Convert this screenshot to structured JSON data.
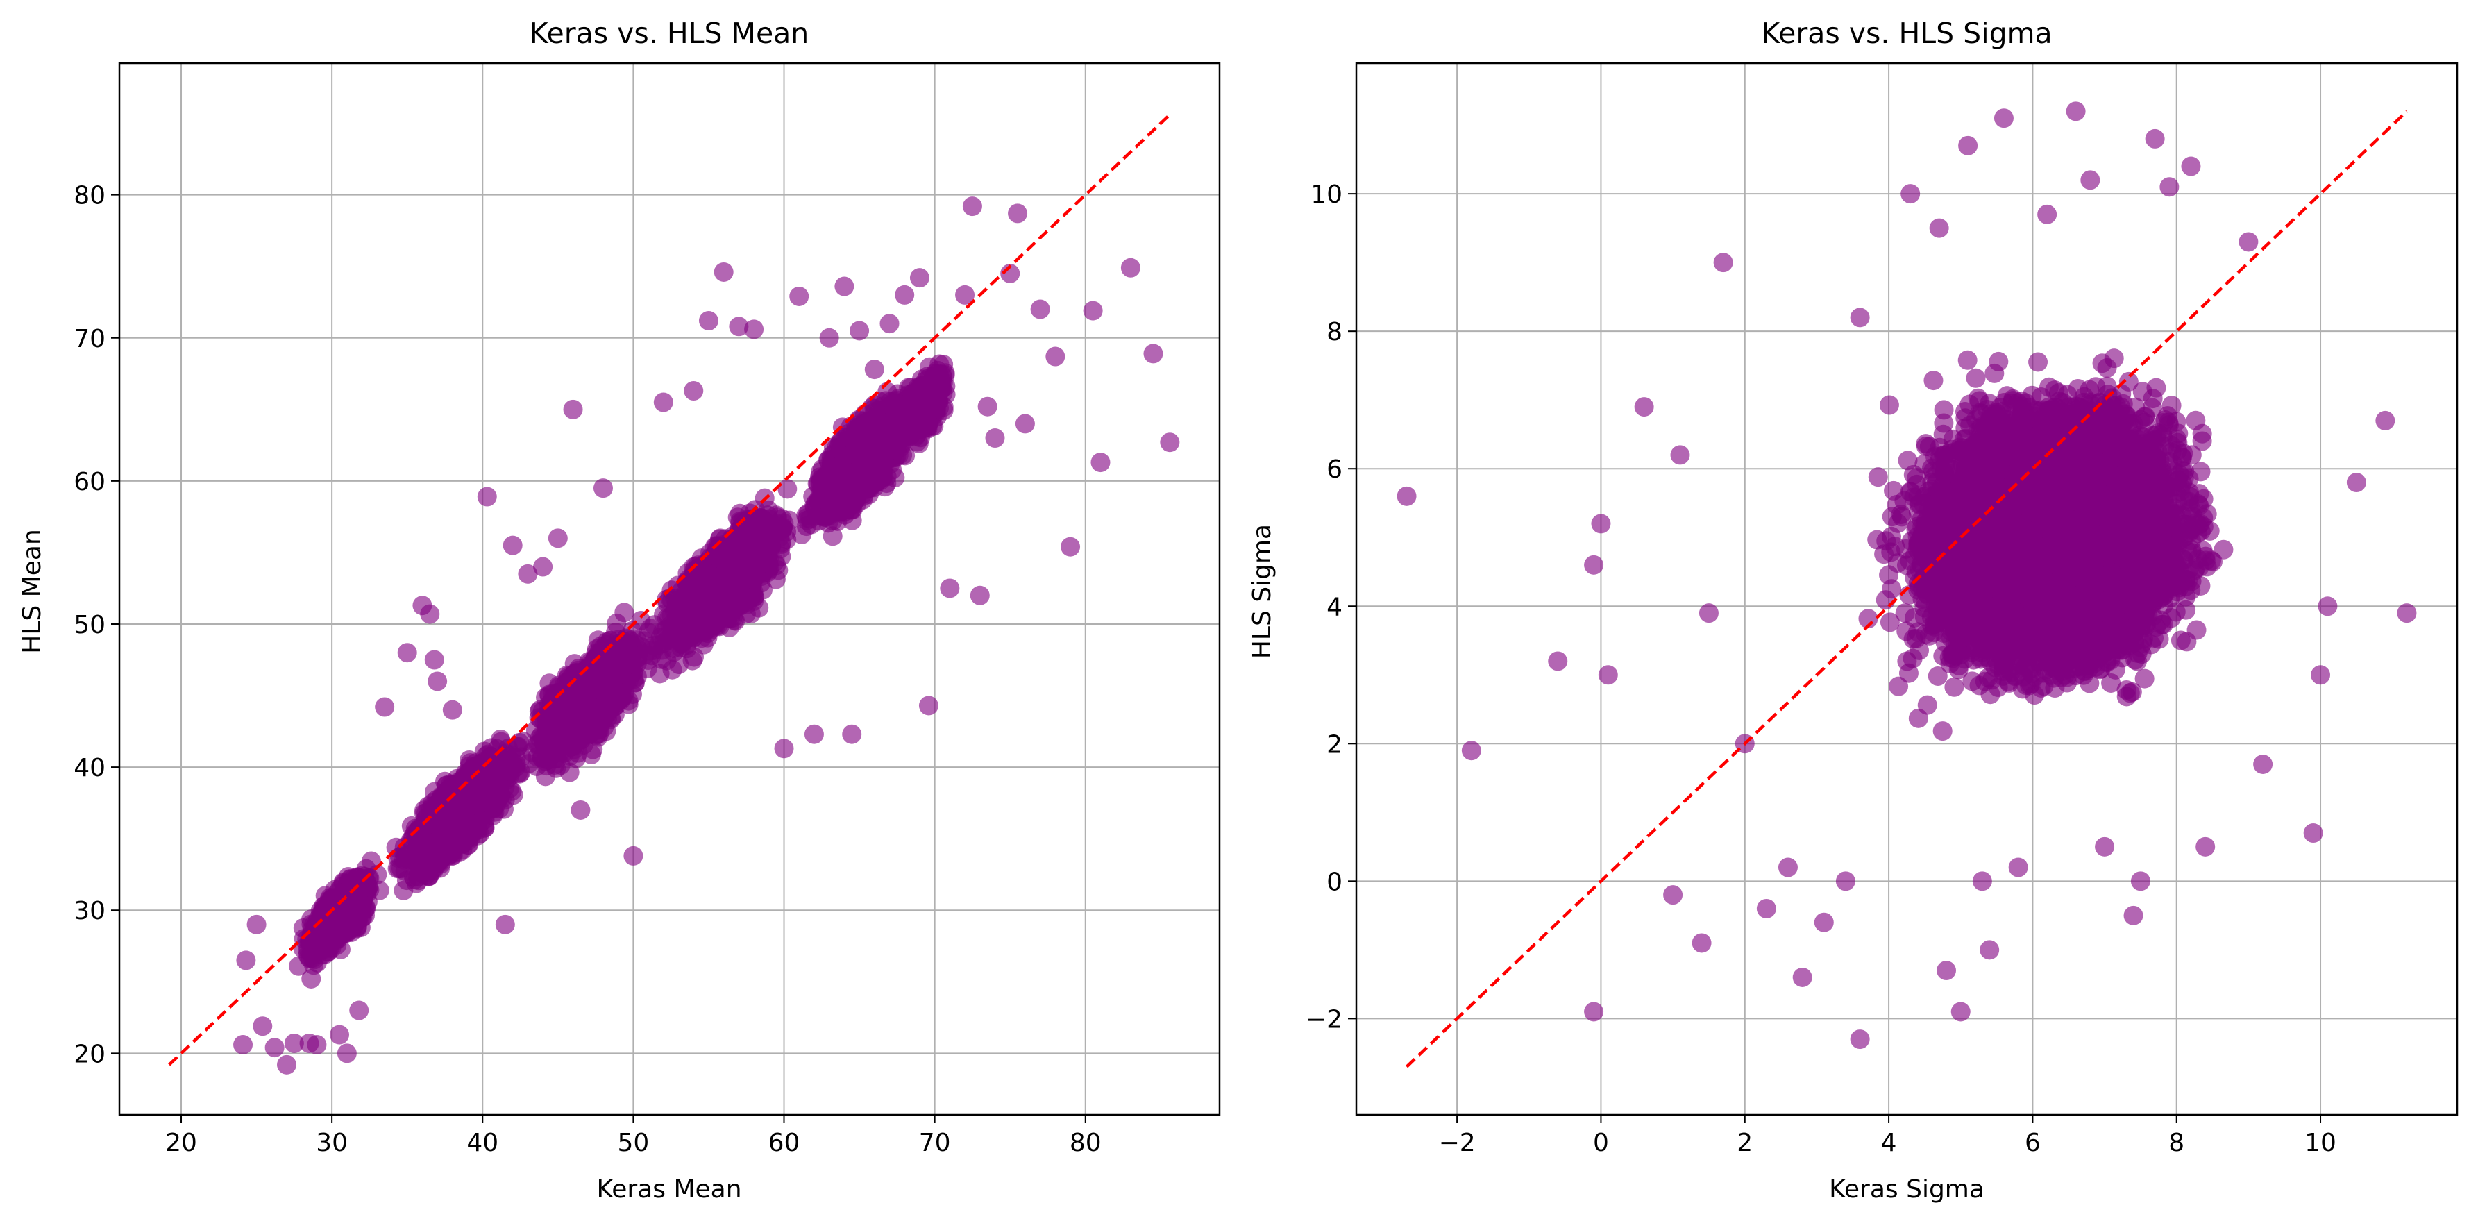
{
  "chart_data": [
    {
      "type": "scatter",
      "title": "Keras vs. HLS Mean",
      "xlabel": "Keras Mean",
      "ylabel": "HLS Mean",
      "xlim": [
        15.9,
        88.9
      ],
      "ylim": [
        15.7,
        89.2
      ],
      "xticks": [
        20,
        30,
        40,
        50,
        60,
        70,
        80
      ],
      "yticks": [
        20,
        30,
        40,
        50,
        60,
        70,
        80
      ],
      "grid": true,
      "point_color": "#800080",
      "point_alpha": 0.6,
      "reference_line": {
        "color": "#ff0000",
        "style": "dashed",
        "from": [
          19.2,
          19.2
        ],
        "to": [
          85.6,
          85.6
        ]
      },
      "cloud": [
        {
          "x": [
            27,
            34
          ],
          "y": [
            24,
            36
          ],
          "n": 900
        },
        {
          "x": [
            33,
            44
          ],
          "y": [
            28,
            45
          ],
          "n": 1700
        },
        {
          "x": [
            42,
            52
          ],
          "y": [
            35,
            53
          ],
          "n": 1900
        },
        {
          "x": [
            50,
            62
          ],
          "y": [
            41,
            60
          ],
          "n": 1900
        },
        {
          "x": [
            60,
            70
          ],
          "y": [
            48,
            66
          ],
          "n": 1300
        },
        {
          "x": [
            66,
            72
          ],
          "y": [
            52,
            66
          ],
          "n": 400
        }
      ],
      "outliers_x": [
        24.1,
        24.3,
        25.0,
        25.4,
        26.2,
        27.0,
        27.5,
        28.5,
        29.0,
        30.5,
        31.0,
        31.8,
        33.5,
        35.0,
        36.0,
        36.5,
        36.8,
        37.0,
        37.5,
        38.0,
        40.3,
        41.5,
        42.0,
        43.0,
        44.0,
        45.0,
        46.0,
        46.5,
        48.0,
        50.0,
        52.0,
        54.0,
        55.0,
        56.0,
        57.0,
        58.0,
        60.0,
        61.0,
        62.0,
        63.0,
        64.0,
        64.5,
        65.0,
        66.0,
        67.0,
        68.0,
        69.0,
        69.6,
        70.0,
        71.0,
        72.0,
        72.5,
        73.0,
        73.5,
        74.0,
        75.0,
        75.5,
        76.0,
        77.0,
        78.0,
        79.0,
        80.5,
        81.0,
        83.0,
        84.5,
        85.6
      ],
      "outliers_y": [
        20.6,
        26.5,
        29.0,
        21.9,
        20.4,
        19.2,
        20.7,
        20.7,
        20.6,
        21.3,
        20.0,
        23.0,
        44.2,
        48.0,
        51.3,
        50.7,
        47.5,
        46.0,
        39.0,
        44.0,
        58.9,
        29.0,
        55.5,
        53.5,
        54.0,
        56.0,
        65.0,
        37.0,
        59.5,
        33.8,
        65.5,
        66.3,
        71.2,
        74.6,
        70.8,
        70.6,
        41.3,
        72.9,
        42.3,
        70.0,
        73.6,
        42.3,
        70.5,
        67.8,
        71.0,
        73.0,
        74.2,
        44.3,
        67.5,
        52.5,
        73.0,
        79.2,
        52.0,
        65.2,
        63.0,
        74.5,
        78.7,
        64.0,
        72.0,
        68.7,
        55.4,
        71.9,
        61.3,
        74.9,
        68.9,
        62.7
      ]
    },
    {
      "type": "scatter",
      "title": "Keras vs. HLS Sigma",
      "xlabel": "Keras Sigma",
      "ylabel": "HLS Sigma",
      "xlim": [
        -3.4,
        11.9
      ],
      "ylim": [
        -3.4,
        11.9
      ],
      "xticks": [
        -2,
        0,
        2,
        4,
        6,
        8,
        10
      ],
      "yticks": [
        -2,
        0,
        2,
        4,
        6,
        8,
        10
      ],
      "grid": true,
      "point_color": "#800080",
      "point_alpha": 0.6,
      "reference_line": {
        "color": "#ff0000",
        "style": "dashed",
        "from": [
          -2.7,
          -2.7
        ],
        "to": [
          11.2,
          11.2
        ]
      },
      "cloud": [
        {
          "x": [
            2.5,
            10.0
          ],
          "y": [
            1.0,
            9.0
          ],
          "n": 9000
        }
      ],
      "outliers_x": [
        -2.7,
        -1.8,
        -0.6,
        -0.1,
        -0.1,
        0.0,
        0.1,
        0.6,
        1.0,
        1.1,
        1.4,
        1.5,
        1.7,
        2.0,
        2.3,
        2.6,
        2.8,
        3.1,
        3.4,
        3.6,
        3.6,
        4.3,
        4.7,
        4.8,
        5.0,
        5.1,
        5.3,
        5.4,
        5.6,
        5.8,
        6.2,
        6.6,
        6.8,
        7.0,
        7.4,
        7.5,
        7.7,
        7.9,
        8.2,
        8.4,
        9.0,
        9.2,
        9.9,
        10.0,
        10.1,
        10.5,
        10.9,
        11.2
      ],
      "outliers_y": [
        5.6,
        1.9,
        3.2,
        4.6,
        -1.9,
        5.2,
        3.0,
        6.9,
        -0.2,
        6.2,
        -0.9,
        3.9,
        9.0,
        2.0,
        -0.4,
        0.2,
        -1.4,
        -0.6,
        0.0,
        -2.3,
        8.2,
        10.0,
        9.5,
        -1.3,
        -1.9,
        10.7,
        0.0,
        -1.0,
        11.1,
        0.2,
        9.7,
        11.2,
        10.2,
        0.5,
        -0.5,
        0.0,
        10.8,
        10.1,
        10.4,
        0.5,
        9.3,
        1.7,
        0.7,
        3.0,
        4.0,
        5.8,
        6.7,
        3.9
      ]
    }
  ]
}
